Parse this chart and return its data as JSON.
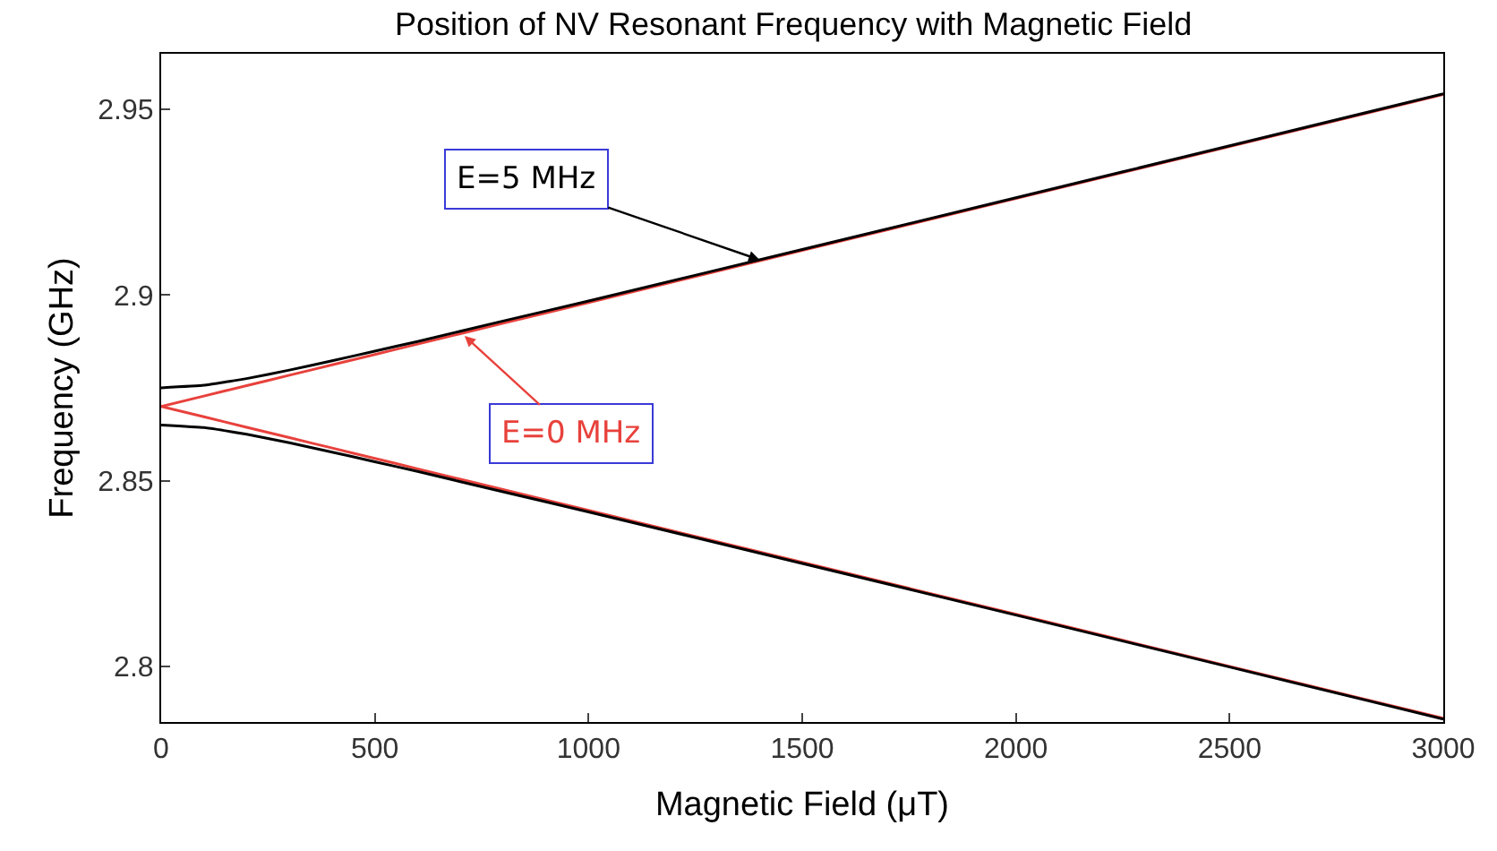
{
  "chart_data": {
    "type": "line",
    "title": "Position of NV Resonant Frequency with Magnetic Field",
    "xlabel": "Magnetic Field (μT)",
    "ylabel": "Frequency (GHz)",
    "x": [
      0,
      100,
      200,
      300,
      400,
      500,
      600,
      800,
      1000,
      1500,
      2000,
      2500,
      3000
    ],
    "series": [
      {
        "color": "#e8413c",
        "values": [
          2.87,
          2.8728,
          2.8756,
          2.8784,
          2.8812,
          2.884,
          2.8868,
          2.8924,
          2.898,
          2.912,
          2.926,
          2.94,
          2.954
        ]
      },
      {
        "color": "#e8413c",
        "values": [
          2.87,
          2.8672,
          2.8644,
          2.8616,
          2.8588,
          2.856,
          2.8532,
          2.8476,
          2.842,
          2.828,
          2.814,
          2.8,
          2.786
        ]
      },
      {
        "color": "#000000",
        "values": [
          2.875,
          2.8757,
          2.8775,
          2.8798,
          2.8823,
          2.8849,
          2.8875,
          2.893,
          2.8984,
          2.9123,
          2.9262,
          2.9402,
          2.9542
        ]
      },
      {
        "color": "#000000",
        "values": [
          2.865,
          2.8643,
          2.8625,
          2.8602,
          2.8577,
          2.8551,
          2.8525,
          2.847,
          2.8416,
          2.8277,
          2.8138,
          2.7998,
          2.7858
        ]
      }
    ],
    "annotations": [
      {
        "text": "E=5 MHz",
        "x": 1400,
        "y": 2.9095
      },
      {
        "text": "E=0 MHz",
        "x": 710,
        "y": 2.889
      }
    ],
    "xlim": [
      0,
      3000
    ],
    "xticks": [
      0,
      500,
      1000,
      1500,
      2000,
      2500,
      3000
    ],
    "ylim": [
      2.785,
      2.965
    ],
    "yticks": [
      2.8,
      2.85,
      2.9,
      2.95
    ],
    "legend": false,
    "marker": "none",
    "line_style": "solid"
  }
}
